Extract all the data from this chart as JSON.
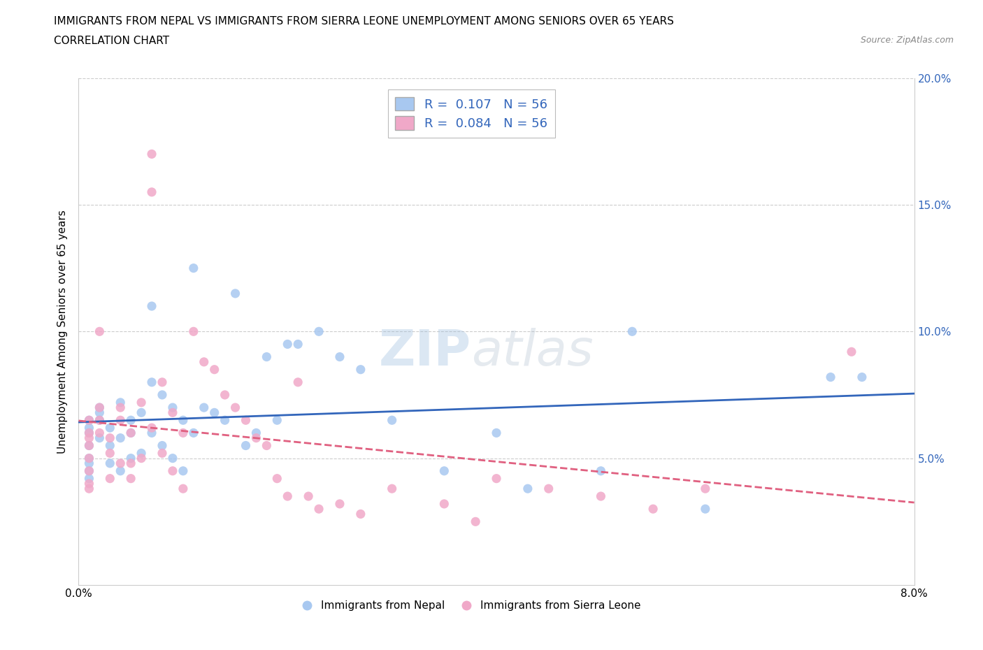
{
  "title_line1": "IMMIGRANTS FROM NEPAL VS IMMIGRANTS FROM SIERRA LEONE UNEMPLOYMENT AMONG SENIORS OVER 65 YEARS",
  "title_line2": "CORRELATION CHART",
  "source": "Source: ZipAtlas.com",
  "ylabel": "Unemployment Among Seniors over 65 years",
  "r_nepal": 0.107,
  "n_nepal": 56,
  "r_sierra": 0.084,
  "n_sierra": 56,
  "nepal_color": "#a8c8f0",
  "sierra_color": "#f0a8c8",
  "nepal_line_color": "#3366bb",
  "sierra_line_color": "#e06080",
  "xlim": [
    0.0,
    0.08
  ],
  "ylim": [
    0.0,
    0.2
  ],
  "legend_nepal": "Immigrants from Nepal",
  "legend_sierra": "Immigrants from Sierra Leone",
  "nepal_x": [
    0.001,
    0.001,
    0.001,
    0.001,
    0.001,
    0.001,
    0.001,
    0.001,
    0.002,
    0.002,
    0.002,
    0.002,
    0.003,
    0.003,
    0.003,
    0.004,
    0.004,
    0.004,
    0.005,
    0.005,
    0.005,
    0.006,
    0.006,
    0.007,
    0.007,
    0.007,
    0.008,
    0.008,
    0.009,
    0.009,
    0.01,
    0.01,
    0.011,
    0.011,
    0.012,
    0.013,
    0.014,
    0.015,
    0.016,
    0.017,
    0.018,
    0.019,
    0.02,
    0.021,
    0.023,
    0.025,
    0.027,
    0.03,
    0.035,
    0.04,
    0.043,
    0.05,
    0.053,
    0.06,
    0.072,
    0.075
  ],
  "nepal_y": [
    0.06,
    0.062,
    0.065,
    0.055,
    0.048,
    0.05,
    0.045,
    0.042,
    0.058,
    0.065,
    0.07,
    0.068,
    0.062,
    0.055,
    0.048,
    0.072,
    0.058,
    0.045,
    0.065,
    0.06,
    0.05,
    0.068,
    0.052,
    0.11,
    0.08,
    0.06,
    0.075,
    0.055,
    0.07,
    0.05,
    0.065,
    0.045,
    0.125,
    0.06,
    0.07,
    0.068,
    0.065,
    0.115,
    0.055,
    0.06,
    0.09,
    0.065,
    0.095,
    0.095,
    0.1,
    0.09,
    0.085,
    0.065,
    0.045,
    0.06,
    0.038,
    0.045,
    0.1,
    0.03,
    0.082,
    0.082
  ],
  "sierra_x": [
    0.001,
    0.001,
    0.001,
    0.001,
    0.001,
    0.001,
    0.001,
    0.001,
    0.002,
    0.002,
    0.002,
    0.002,
    0.003,
    0.003,
    0.003,
    0.004,
    0.004,
    0.004,
    0.005,
    0.005,
    0.005,
    0.006,
    0.006,
    0.007,
    0.007,
    0.007,
    0.008,
    0.008,
    0.009,
    0.009,
    0.01,
    0.01,
    0.011,
    0.012,
    0.013,
    0.014,
    0.015,
    0.016,
    0.017,
    0.018,
    0.019,
    0.02,
    0.021,
    0.022,
    0.023,
    0.025,
    0.027,
    0.03,
    0.035,
    0.038,
    0.04,
    0.045,
    0.05,
    0.055,
    0.06,
    0.074
  ],
  "sierra_y": [
    0.06,
    0.055,
    0.065,
    0.058,
    0.05,
    0.045,
    0.04,
    0.038,
    0.065,
    0.06,
    0.07,
    0.1,
    0.058,
    0.052,
    0.042,
    0.07,
    0.065,
    0.048,
    0.06,
    0.048,
    0.042,
    0.072,
    0.05,
    0.155,
    0.17,
    0.062,
    0.08,
    0.052,
    0.068,
    0.045,
    0.06,
    0.038,
    0.1,
    0.088,
    0.085,
    0.075,
    0.07,
    0.065,
    0.058,
    0.055,
    0.042,
    0.035,
    0.08,
    0.035,
    0.03,
    0.032,
    0.028,
    0.038,
    0.032,
    0.025,
    0.042,
    0.038,
    0.035,
    0.03,
    0.038,
    0.092
  ]
}
